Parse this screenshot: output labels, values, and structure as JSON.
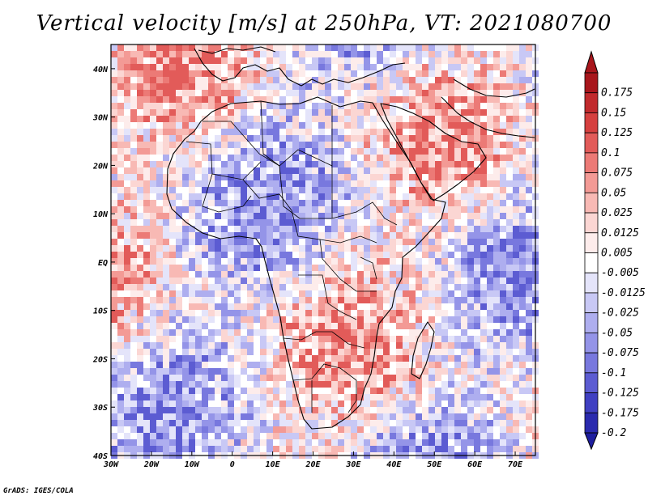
{
  "title": "Vertical velocity [m/s] at 250hPa, VT: 2021080700",
  "credit": "GrADS: IGES/COLA",
  "map": {
    "lon_range": [
      -30,
      75
    ],
    "lat_range": [
      -40,
      45
    ],
    "x_ticks": [
      {
        "lon": -30,
        "label": "30W"
      },
      {
        "lon": -20,
        "label": "20W"
      },
      {
        "lon": -10,
        "label": "10W"
      },
      {
        "lon": 0,
        "label": "0"
      },
      {
        "lon": 10,
        "label": "10E"
      },
      {
        "lon": 20,
        "label": "20E"
      },
      {
        "lon": 30,
        "label": "30E"
      },
      {
        "lon": 40,
        "label": "40E"
      },
      {
        "lon": 50,
        "label": "50E"
      },
      {
        "lon": 60,
        "label": "60E"
      },
      {
        "lon": 70,
        "label": "70E"
      }
    ],
    "y_ticks": [
      {
        "lat": 40,
        "label": "40N"
      },
      {
        "lat": 30,
        "label": "30N"
      },
      {
        "lat": 20,
        "label": "20N"
      },
      {
        "lat": 10,
        "label": "10N"
      },
      {
        "lat": 0,
        "label": "EQ"
      },
      {
        "lat": -10,
        "label": "10S"
      },
      {
        "lat": -20,
        "label": "20S"
      },
      {
        "lat": -30,
        "label": "30S"
      },
      {
        "lat": -40,
        "label": "40S"
      }
    ]
  },
  "colorbar": {
    "bins": [
      {
        "label": "0.175",
        "color": "#a8161c"
      },
      {
        "label": "0.15",
        "color": "#c12a2d"
      },
      {
        "label": "0.125",
        "color": "#d6403f"
      },
      {
        "label": "0.1",
        "color": "#e25b59"
      },
      {
        "label": "0.075",
        "color": "#ec7a76"
      },
      {
        "label": "0.05",
        "color": "#f39a95"
      },
      {
        "label": "0.025",
        "color": "#f8b9b4"
      },
      {
        "label": "0.0125",
        "color": "#fbd6d3"
      },
      {
        "label": "0.005",
        "color": "#fdeceb"
      },
      {
        "label": "-0.005",
        "color": "#ffffff"
      },
      {
        "label": "-0.0125",
        "color": "#e4e4fa"
      },
      {
        "label": "-0.025",
        "color": "#c8c8f5"
      },
      {
        "label": "-0.05",
        "color": "#aeaeef"
      },
      {
        "label": "-0.075",
        "color": "#9494e8"
      },
      {
        "label": "-0.1",
        "color": "#7878de"
      },
      {
        "label": "-0.125",
        "color": "#5c5cd2"
      },
      {
        "label": "-0.175",
        "color": "#4040c2"
      },
      {
        "label": "-0.2",
        "color": "#2a2aae"
      }
    ],
    "top_cap_color": "#a8161c",
    "bottom_cap_color": "#1e1e9e"
  }
}
